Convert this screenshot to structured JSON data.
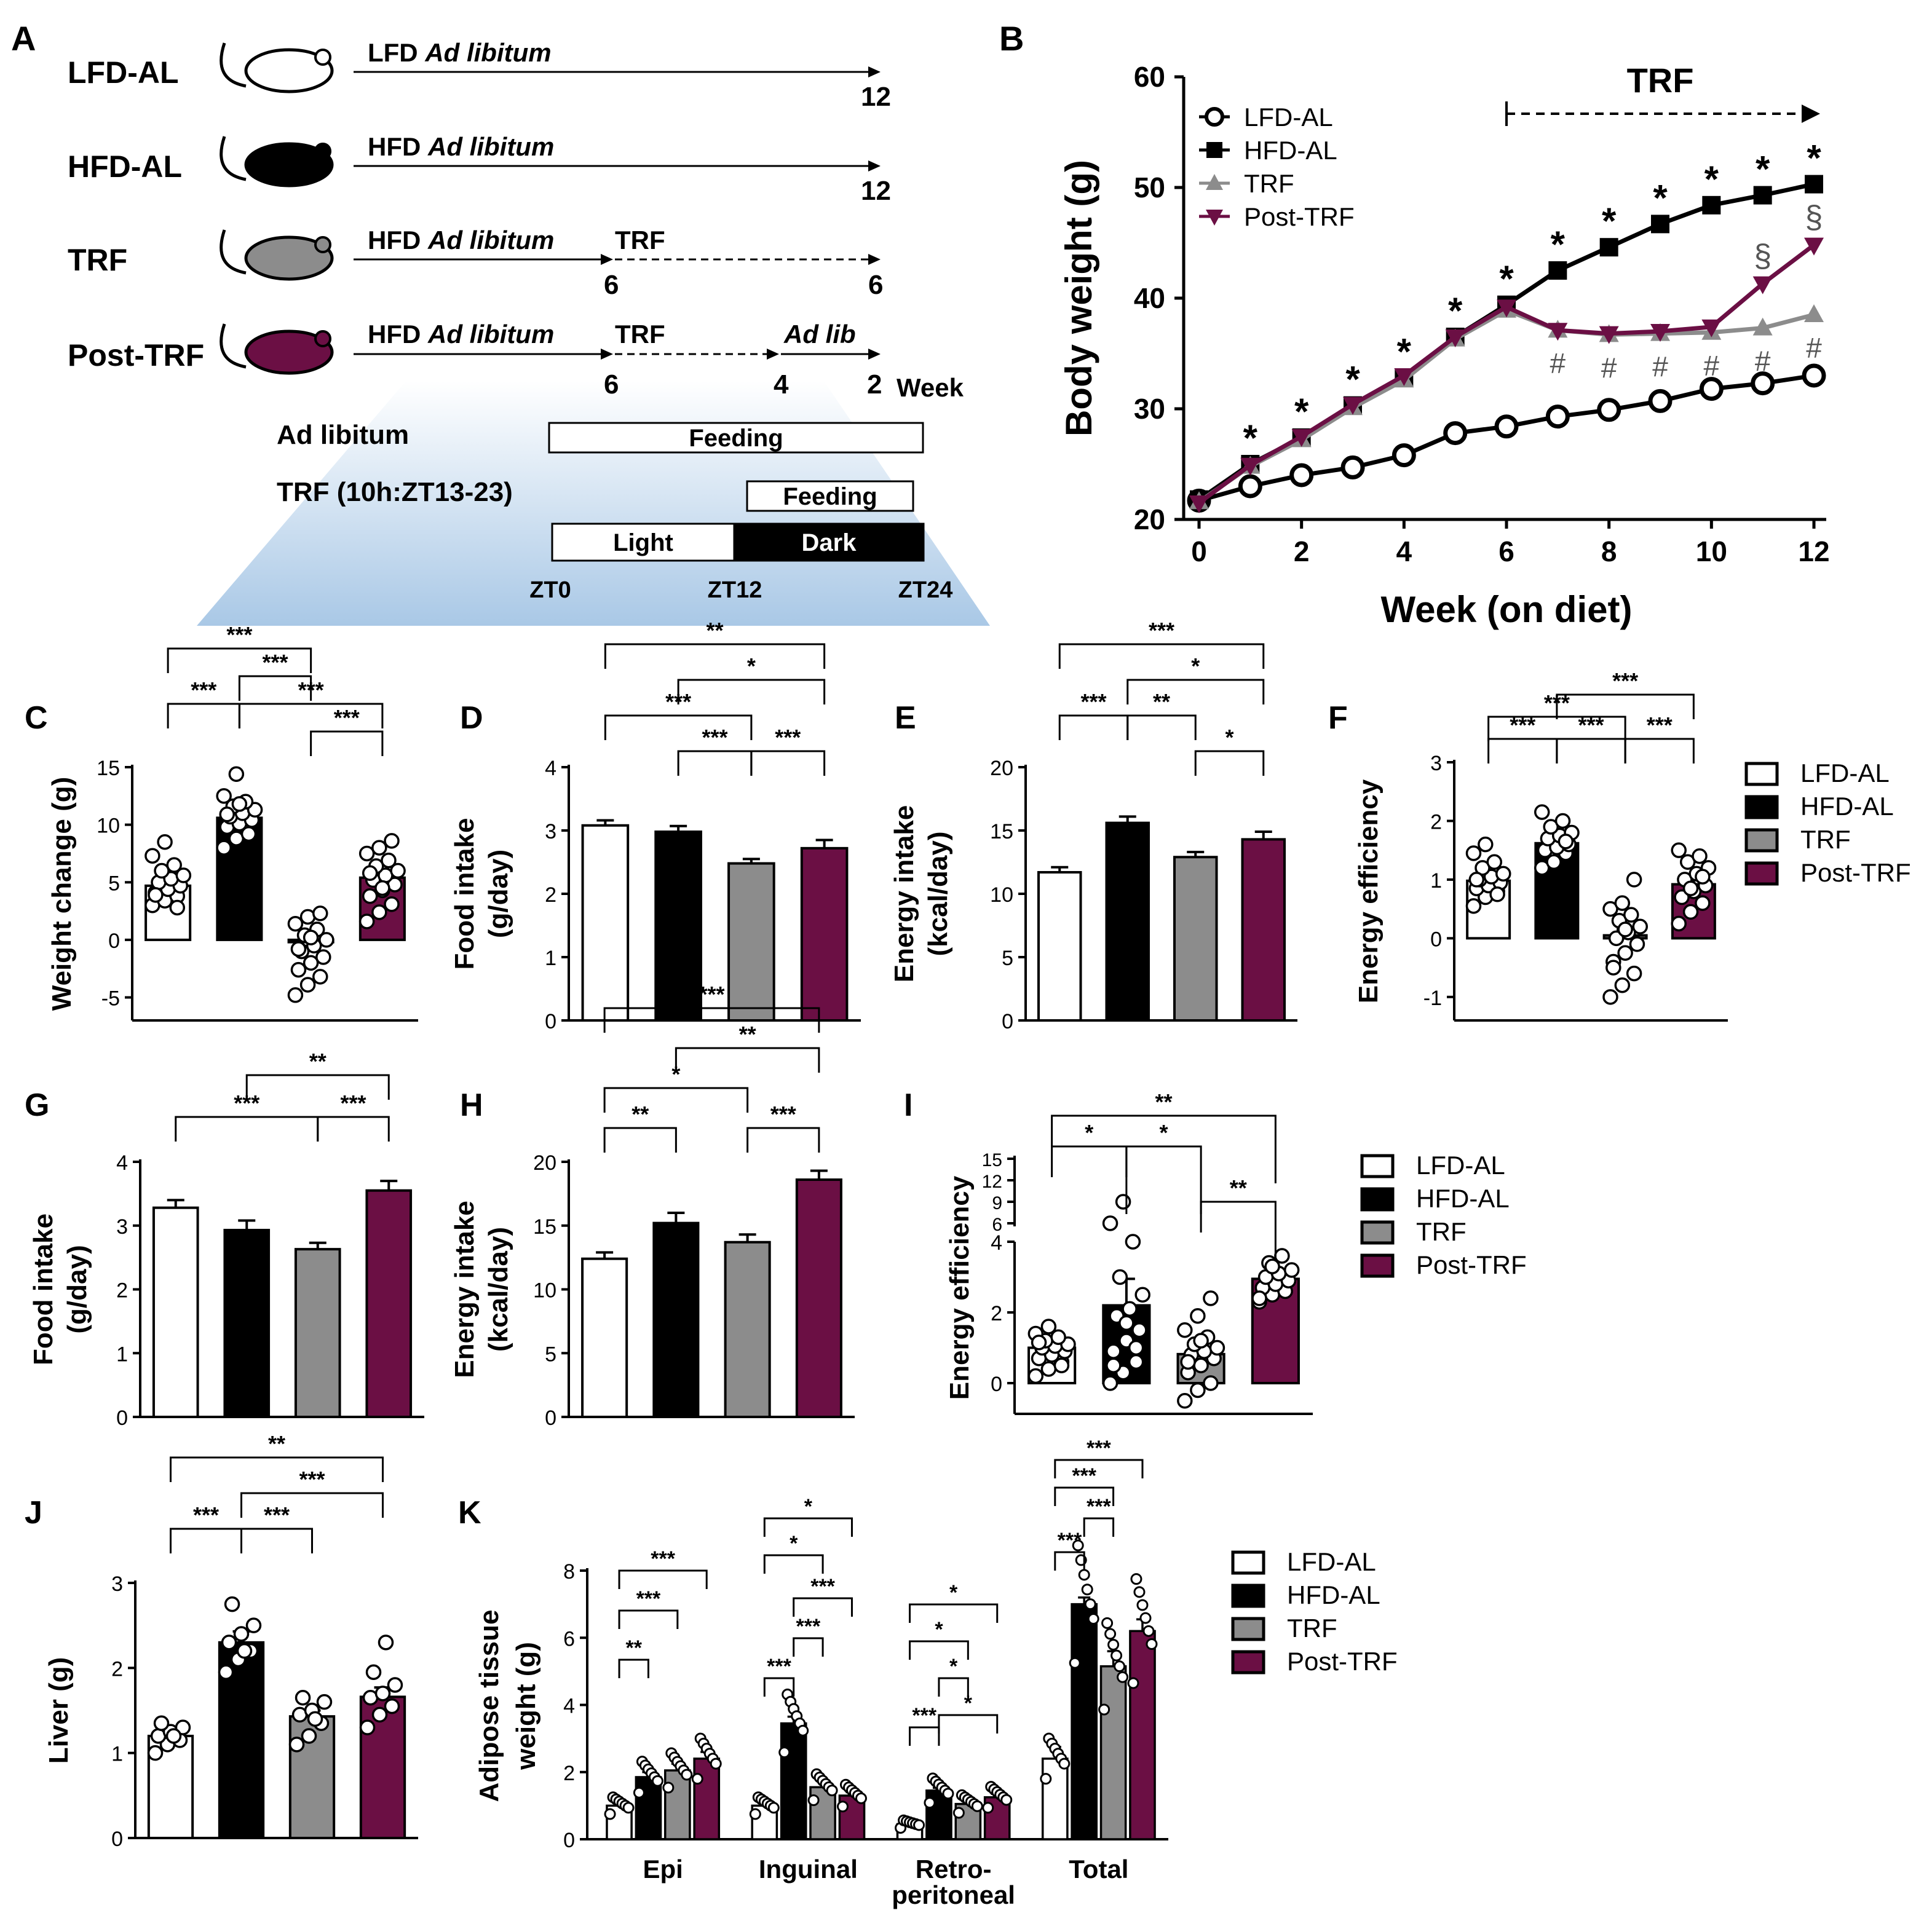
{
  "colors": {
    "lfd": "#ffffff",
    "hfd": "#000000",
    "trf": "#8c8c8c",
    "post": "#6b0f44",
    "gradient_top": "#ffffff",
    "gradient_bottom": "#a9c8e6"
  },
  "legend": [
    "LFD-AL",
    "HFD-AL",
    "TRF",
    "Post-TRF"
  ],
  "panel_a": {
    "letter": "A",
    "rows": [
      {
        "label": "LFD-AL",
        "segments": [
          {
            "text": "LFD ",
            "em": "Ad libitum"
          }
        ],
        "ticks": [
          "12"
        ]
      },
      {
        "label": "HFD-AL",
        "segments": [
          {
            "text": "HFD ",
            "em": "Ad libitum"
          }
        ],
        "ticks": [
          "12"
        ]
      },
      {
        "label": "TRF",
        "segments": [
          {
            "text": "HFD ",
            "em": "Ad libitum"
          },
          {
            "text": "TRF",
            "em": ""
          }
        ],
        "ticks": [
          "6",
          "6"
        ]
      },
      {
        "label": "Post-TRF",
        "segments": [
          {
            "text": "HFD ",
            "em": "Ad libitum"
          },
          {
            "text": "TRF",
            "em": ""
          },
          {
            "text": "",
            "em": "Ad lib"
          }
        ],
        "ticks": [
          "6",
          "4",
          "2"
        ],
        "unit": "Week"
      }
    ],
    "schedule": {
      "adlib_label": "Ad libitum",
      "adlib_bar": "Feeding",
      "trf_label": "TRF (10h:ZT13-23)",
      "trf_bar": "Feeding",
      "light": "Light",
      "dark": "Dark",
      "ticks": [
        "ZT0",
        "ZT12",
        "ZT24"
      ]
    }
  },
  "chart_data": [
    {
      "panel": "B",
      "type": "line",
      "xlabel": "Week (on diet)",
      "ylabel": "Body weight (g)",
      "xlim": [
        0,
        12
      ],
      "ylim": [
        20,
        60
      ],
      "xticks": [
        0,
        2,
        4,
        6,
        8,
        10,
        12
      ],
      "yticks": [
        20,
        30,
        40,
        50,
        60
      ],
      "trf_label": "TRF",
      "legend": [
        "LFD-AL",
        "HFD-AL",
        "TRF",
        "Post-TRF"
      ],
      "x": [
        0,
        1,
        2,
        3,
        4,
        5,
        6,
        7,
        8,
        9,
        10,
        11,
        12
      ],
      "series": [
        {
          "name": "LFD-AL",
          "values": [
            21.7,
            23.0,
            24.0,
            24.7,
            25.8,
            27.8,
            28.4,
            29.3,
            29.9,
            30.7,
            31.8,
            32.3,
            33.0
          ]
        },
        {
          "name": "HFD-AL",
          "values": [
            21.8,
            25.0,
            27.4,
            30.3,
            32.8,
            36.5,
            39.4,
            42.5,
            44.6,
            46.7,
            48.4,
            49.3,
            50.3
          ]
        },
        {
          "name": "TRF",
          "values": [
            21.6,
            24.8,
            27.2,
            30.1,
            32.6,
            36.3,
            38.9,
            37.1,
            36.7,
            36.8,
            36.9,
            37.3,
            38.5
          ]
        },
        {
          "name": "Post-TRF",
          "values": [
            21.5,
            24.9,
            27.5,
            30.4,
            33.0,
            36.5,
            39.2,
            37.1,
            36.8,
            37.0,
            37.4,
            41.3,
            44.8
          ]
        }
      ],
      "annotations": {
        "star_weeks": [
          1,
          2,
          3,
          4,
          5,
          6,
          7,
          8,
          9,
          10,
          11,
          12
        ],
        "star": "*",
        "hash_weeks": [
          7,
          8,
          9,
          10,
          11,
          12
        ],
        "hash": "#",
        "sect_weeks": [
          11,
          12
        ],
        "sect": "§"
      }
    },
    {
      "panel": "C",
      "type": "bar",
      "ylabel": "Weight change (g)",
      "ylim": [
        -7,
        15
      ],
      "yticks": [
        -5,
        0,
        5,
        10,
        15
      ],
      "categories": [
        "LFD-AL",
        "HFD-AL",
        "TRF",
        "Post-TRF"
      ],
      "values": [
        4.7,
        10.6,
        -0.2,
        5.4
      ],
      "errors": [
        0.4,
        0.5,
        0.5,
        0.6
      ],
      "points": [
        [
          3.0,
          3.4,
          3.8,
          4.1,
          4.4,
          4.7,
          5.0,
          5.3,
          5.6,
          6.0,
          6.5,
          7.3,
          8.5,
          2.8,
          3.9
        ],
        [
          8.0,
          8.8,
          9.4,
          9.8,
          10.1,
          10.4,
          10.7,
          11.0,
          11.3,
          11.6,
          12.0,
          12.5,
          14.4,
          9.2,
          10.9,
          11.8
        ],
        [
          -4.8,
          -3.9,
          -3.2,
          -2.6,
          -2.0,
          -1.5,
          -1.0,
          -0.5,
          0,
          0.4,
          0.9,
          1.4,
          2.0,
          2.3,
          -0.8,
          0.2
        ],
        [
          1.6,
          2.4,
          3.1,
          3.8,
          4.3,
          4.8,
          5.2,
          5.6,
          6.0,
          6.4,
          6.9,
          7.5,
          8.0,
          8.6,
          5.8,
          4.5
        ]
      ],
      "sig": [
        {
          "a": 0,
          "b": 2,
          "label": "***",
          "level": 3
        },
        {
          "a": 1,
          "b": 2,
          "label": "***",
          "level": 2
        },
        {
          "a": 0,
          "b": 1,
          "label": "***",
          "level": 1
        },
        {
          "a": 1,
          "b": 3,
          "label": "***",
          "level": 1
        },
        {
          "a": 2,
          "b": 3,
          "label": "***",
          "level": 0
        }
      ]
    },
    {
      "panel": "D",
      "type": "bar",
      "ylabel": "Food intake (g/day)",
      "ylim": [
        0,
        4
      ],
      "yticks": [
        0,
        1,
        2,
        3,
        4
      ],
      "categories": [
        "LFD-AL",
        "HFD-AL",
        "TRF",
        "Post-TRF"
      ],
      "values": [
        3.08,
        2.98,
        2.48,
        2.72
      ],
      "errors": [
        0.08,
        0.09,
        0.07,
        0.13
      ],
      "sig": [
        {
          "a": 0,
          "b": 3,
          "label": "**",
          "level": 4
        },
        {
          "a": 1,
          "b": 3,
          "label": "*",
          "level": 3
        },
        {
          "a": 0,
          "b": 2,
          "label": "***",
          "level": 2
        },
        {
          "a": 1,
          "b": 2,
          "label": "***",
          "level": 1
        },
        {
          "a": 2,
          "b": 3,
          "label": "***",
          "level": 1
        }
      ]
    },
    {
      "panel": "E",
      "type": "bar",
      "ylabel": "Energy intake (kcal/day)",
      "ylim": [
        0,
        20
      ],
      "yticks": [
        0,
        5,
        10,
        15,
        20
      ],
      "categories": [
        "LFD-AL",
        "HFD-AL",
        "TRF",
        "Post-TRF"
      ],
      "values": [
        11.7,
        15.6,
        12.9,
        14.3
      ],
      "errors": [
        0.4,
        0.5,
        0.4,
        0.6
      ],
      "sig": [
        {
          "a": 0,
          "b": 3,
          "label": "***",
          "level": 4
        },
        {
          "a": 1,
          "b": 3,
          "label": "*",
          "level": 3
        },
        {
          "a": 0,
          "b": 1,
          "label": "***",
          "level": 2
        },
        {
          "a": 1,
          "b": 2,
          "label": "**",
          "level": 2
        },
        {
          "a": 2,
          "b": 3,
          "label": "*",
          "level": 1
        }
      ]
    },
    {
      "panel": "F",
      "type": "bar",
      "ylabel": "Energy efficiency",
      "ylim": [
        -1.4,
        3
      ],
      "yticks": [
        -1,
        0,
        1,
        2,
        3
      ],
      "categories": [
        "LFD-AL",
        "HFD-AL",
        "TRF",
        "Post-TRF"
      ],
      "values": [
        0.98,
        1.62,
        0.05,
        0.92
      ],
      "errors": [
        0.08,
        0.08,
        0.1,
        0.1
      ],
      "points": [
        [
          0.55,
          0.7,
          0.8,
          0.85,
          0.9,
          0.95,
          1.0,
          1.05,
          1.1,
          1.2,
          1.3,
          1.45,
          1.6,
          0.75,
          1.0
        ],
        [
          1.2,
          1.35,
          1.45,
          1.5,
          1.55,
          1.6,
          1.7,
          1.75,
          1.8,
          1.9,
          2.0,
          2.15,
          1.3,
          1.65
        ],
        [
          -1.0,
          -0.8,
          -0.6,
          -0.4,
          -0.25,
          -0.1,
          0.0,
          0.1,
          0.2,
          0.3,
          0.4,
          0.5,
          0.6,
          1.0,
          -0.5,
          0.15
        ],
        [
          0.25,
          0.45,
          0.6,
          0.7,
          0.8,
          0.9,
          1.0,
          1.1,
          1.2,
          1.3,
          1.4,
          1.5,
          0.85,
          1.05
        ]
      ],
      "sig": [
        {
          "a": 1,
          "b": 3,
          "label": "***",
          "level": 3
        },
        {
          "a": 0,
          "b": 2,
          "label": "***",
          "level": 2
        },
        {
          "a": 0,
          "b": 1,
          "label": "***",
          "level": 1
        },
        {
          "a": 1,
          "b": 2,
          "label": "***",
          "level": 1
        },
        {
          "a": 2,
          "b": 3,
          "label": "***",
          "level": 1
        }
      ]
    },
    {
      "panel": "G",
      "type": "bar",
      "ylabel": "Food intake (g/day)",
      "ylim": [
        0,
        4
      ],
      "yticks": [
        0,
        1,
        2,
        3,
        4
      ],
      "categories": [
        "LFD-AL",
        "HFD-AL",
        "TRF",
        "Post-TRF"
      ],
      "values": [
        3.28,
        2.93,
        2.63,
        3.55
      ],
      "errors": [
        0.12,
        0.15,
        0.1,
        0.15
      ],
      "sig": [
        {
          "a": 1,
          "b": 3,
          "label": "**",
          "level": 2
        },
        {
          "a": 0,
          "b": 2,
          "label": "***",
          "level": 1
        },
        {
          "a": 2,
          "b": 3,
          "label": "***",
          "level": 1
        }
      ]
    },
    {
      "panel": "H",
      "type": "bar",
      "ylabel": "Energy intake (kcal/day)",
      "ylim": [
        0,
        20
      ],
      "yticks": [
        0,
        5,
        10,
        15,
        20
      ],
      "categories": [
        "LFD-AL",
        "HFD-AL",
        "TRF",
        "Post-TRF"
      ],
      "values": [
        12.4,
        15.2,
        13.7,
        18.6
      ],
      "errors": [
        0.5,
        0.8,
        0.6,
        0.7
      ],
      "sig": [
        {
          "a": 0,
          "b": 3,
          "label": "***",
          "level": 4
        },
        {
          "a": 1,
          "b": 3,
          "label": "**",
          "level": 3
        },
        {
          "a": 0,
          "b": 2,
          "label": "*",
          "level": 2
        },
        {
          "a": 0,
          "b": 1,
          "label": "**",
          "level": 1
        },
        {
          "a": 2,
          "b": 3,
          "label": "***",
          "level": 1
        }
      ]
    },
    {
      "panel": "I",
      "type": "bar",
      "ylabel": "Energy efficiency",
      "broken_axis": true,
      "yticks": [
        0,
        2,
        4
      ],
      "yticks_upper": [
        6,
        9,
        12,
        15
      ],
      "categories": [
        "LFD-AL",
        "HFD-AL",
        "TRF",
        "Post-TRF"
      ],
      "values": [
        1.0,
        2.2,
        0.82,
        2.95
      ],
      "errors": [
        0.12,
        0.75,
        0.15,
        0.12
      ],
      "points": [
        [
          0.2,
          0.4,
          0.6,
          0.7,
          0.8,
          0.9,
          1.0,
          1.05,
          1.1,
          1.2,
          1.3,
          1.4,
          1.6,
          0.5,
          1.15
        ],
        [
          0.0,
          0.3,
          0.6,
          0.9,
          1.2,
          1.5,
          1.9,
          2.1,
          2.5,
          3.0,
          4.0,
          6.0,
          9.0,
          1.0,
          0.5,
          1.7
        ],
        [
          -0.5,
          -0.2,
          0.0,
          0.3,
          0.5,
          0.7,
          0.8,
          0.9,
          1.0,
          1.1,
          1.3,
          1.5,
          1.9,
          2.4,
          0.6,
          1.2
        ],
        [
          2.3,
          2.5,
          2.6,
          2.7,
          2.8,
          2.9,
          3.0,
          3.1,
          3.2,
          3.4,
          3.6,
          2.4,
          3.3
        ]
      ],
      "sig": [
        {
          "a": 0,
          "b": 3,
          "label": "**",
          "level": 3
        },
        {
          "a": 0,
          "b": 1,
          "label": "*",
          "level": 2
        },
        {
          "a": 1,
          "b": 2,
          "label": "*",
          "level": 2
        },
        {
          "a": 2,
          "b": 3,
          "label": "**",
          "level": 1
        }
      ]
    },
    {
      "panel": "J",
      "type": "bar",
      "ylabel": "Liver (g)",
      "ylim": [
        0,
        3
      ],
      "yticks": [
        0,
        1,
        2,
        3
      ],
      "categories": [
        "LFD-AL",
        "HFD-AL",
        "TRF",
        "Post-TRF"
      ],
      "values": [
        1.2,
        2.3,
        1.43,
        1.66
      ],
      "errors": [
        0.05,
        0.13,
        0.07,
        0.11
      ],
      "points": [
        [
          1.0,
          1.1,
          1.15,
          1.2,
          1.25,
          1.3,
          1.35,
          1.2
        ],
        [
          1.95,
          2.1,
          2.2,
          2.3,
          2.4,
          2.5,
          2.75,
          2.2
        ],
        [
          1.1,
          1.2,
          1.35,
          1.45,
          1.5,
          1.6,
          1.65,
          1.4
        ],
        [
          1.3,
          1.45,
          1.55,
          1.65,
          1.7,
          1.8,
          1.95,
          2.3
        ]
      ],
      "sig": [
        {
          "a": 0,
          "b": 3,
          "label": "**",
          "level": 3
        },
        {
          "a": 1,
          "b": 3,
          "label": "***",
          "level": 2
        },
        {
          "a": 0,
          "b": 1,
          "label": "***",
          "level": 1
        },
        {
          "a": 1,
          "b": 2,
          "label": "***",
          "level": 1
        }
      ]
    },
    {
      "panel": "K",
      "type": "bar",
      "ylabel": "Adipose tissue weight (g)",
      "ylim": [
        0,
        8
      ],
      "yticks": [
        0,
        2,
        4,
        6,
        8
      ],
      "groups": [
        "Epi",
        "Inguinal",
        "Retro-peritoneal",
        "Total"
      ],
      "series": [
        {
          "name": "LFD-AL",
          "values": [
            1.0,
            1.0,
            0.45,
            2.4
          ]
        },
        {
          "name": "HFD-AL",
          "values": [
            1.85,
            3.45,
            1.45,
            7.0
          ]
        },
        {
          "name": "TRF",
          "values": [
            2.05,
            1.55,
            1.05,
            5.15
          ]
        },
        {
          "name": "Post-TRF",
          "values": [
            2.4,
            1.3,
            1.25,
            6.2
          ]
        }
      ],
      "errors": [
        [
          0.15,
          0.15,
          0.1,
          0.35
        ],
        [
          0.15,
          0.2,
          0.08,
          0.2
        ],
        [
          0.2,
          0.2,
          0.1,
          0.45
        ],
        [
          0.2,
          0.1,
          0.1,
          0.35
        ]
      ],
      "sig_labels": {
        "Epi": [
          "**",
          "***",
          "***"
        ],
        "Inguinal": [
          "***",
          "***",
          "***",
          "*",
          "*"
        ],
        "Retro-peritoneal": [
          "***",
          "*",
          "*",
          "*",
          "*"
        ],
        "Total": [
          "***",
          "***",
          "***",
          "***"
        ]
      }
    }
  ]
}
